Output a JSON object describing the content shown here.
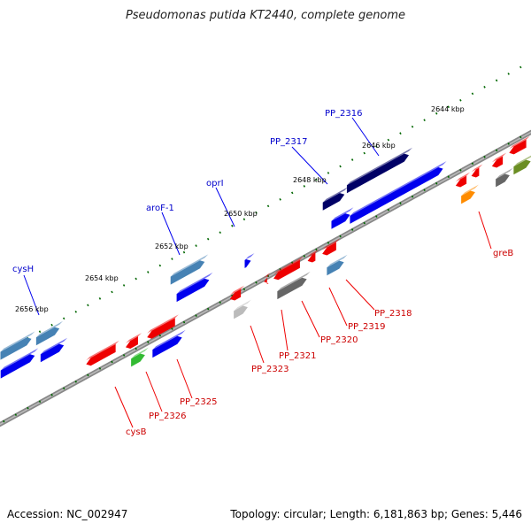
{
  "title": "Pseudomonas putida KT2440, complete genome",
  "footer": {
    "accession": "Accession: NC_002947",
    "summary": "Topology: circular; Length: 6,181,863 bp; Genes: 5,446"
  },
  "scale_labels": [
    "2644 kbp",
    "2646 kbp",
    "2648 kbp",
    "2650 kbp",
    "2652 kbp",
    "2654 kbp",
    "2656 kbp"
  ],
  "forward_labels": [
    "PP_2316",
    "PP_2317",
    "oprI",
    "aroF-1",
    "cysH"
  ],
  "reverse_labels": [
    "greB",
    "PP_2318",
    "PP_2319",
    "PP_2320",
    "PP_2321",
    "PP_2323",
    "PP_2325",
    "PP_2326",
    "cysB"
  ],
  "colors": {
    "blue": "#0000ee",
    "navy": "#000066",
    "steel": "#4682b4",
    "red": "#ee0000",
    "gray": "#666666",
    "silver": "#bbbbbb",
    "green": "#33bb33",
    "orange": "#ff8c00",
    "olive": "#6b8e23",
    "label_blue": "#0000cc",
    "label_red": "#cc0000",
    "tick_green": "#006600"
  }
}
